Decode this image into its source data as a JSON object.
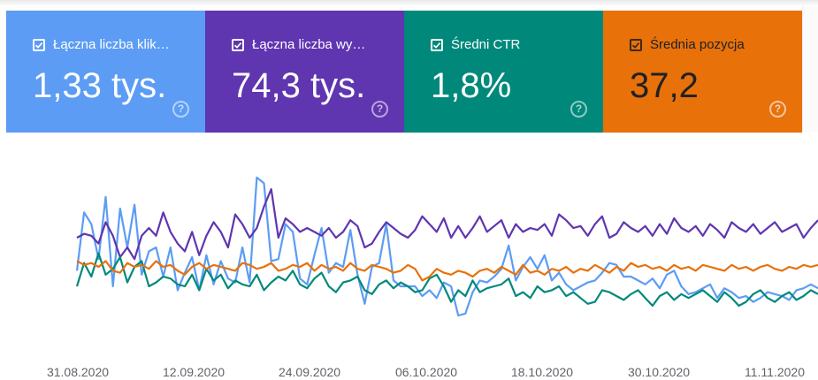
{
  "metric_cards": [
    {
      "label": "Łączna liczba klik…",
      "value": "1,33 tys.",
      "color": "#5c9cf4",
      "checked": true,
      "help_icon": "help-circle-icon"
    },
    {
      "label": "Łączna liczba wy…",
      "value": "74,3 tys.",
      "color": "#5f35b0",
      "checked": true,
      "help_icon": "help-circle-icon"
    },
    {
      "label": "Średni CTR",
      "value": "1,8%",
      "color": "#00897b",
      "checked": true,
      "help_icon": "help-circle-icon"
    },
    {
      "label": "Średnia pozycja",
      "value": "37,2",
      "color": "#e8710a",
      "checked": true,
      "help_icon": "help-circle-icon"
    }
  ],
  "chart_data": {
    "type": "line",
    "x_tick_labels": [
      "31.08.2020",
      "12.09.2020",
      "24.09.2020",
      "06.10.2020",
      "18.10.2020",
      "30.10.2020",
      "11.11.2020"
    ],
    "grid": false,
    "legend": "none",
    "axis_values_shown": false,
    "series": [
      {
        "name": "Łączna liczba klik…",
        "color": "#5c9cf4",
        "values": [
          0.38,
          0.68,
          0.62,
          0.44,
          0.76,
          0.3,
          0.7,
          0.5,
          0.72,
          0.36,
          0.48,
          0.5,
          0.35,
          0.5,
          0.28,
          0.37,
          0.45,
          0.28,
          0.46,
          0.31,
          0.43,
          0.34,
          0.32,
          0.5,
          0.32,
          0.86,
          0.83,
          0.43,
          0.44,
          0.62,
          0.58,
          0.34,
          0.31,
          0.46,
          0.6,
          0.37,
          0.42,
          0.4,
          0.59,
          0.36,
          0.21,
          0.4,
          0.42,
          0.62,
          0.33,
          0.3,
          0.3,
          0.3,
          0.25,
          0.28,
          0.24,
          0.32,
          0.3,
          0.15,
          0.16,
          0.27,
          0.33,
          0.32,
          0.35,
          0.39,
          0.51,
          0.33,
          0.4,
          0.45,
          0.39,
          0.46,
          0.33,
          0.37,
          0.31,
          0.28,
          0.3,
          0.32,
          0.33,
          0.37,
          0.42,
          0.41,
          0.35,
          0.35,
          0.33,
          0.31,
          0.34,
          0.29,
          0.36,
          0.38,
          0.3,
          0.26,
          0.27,
          0.29,
          0.31,
          0.24,
          0.29,
          0.27,
          0.24,
          0.25,
          0.22,
          0.24,
          0.27,
          0.26,
          0.25,
          0.23,
          0.28,
          0.29,
          0.31,
          0.29
        ]
      },
      {
        "name": "Łączna liczba wy…",
        "color": "#5f35b0",
        "values": [
          0.55,
          0.57,
          0.56,
          0.52,
          0.63,
          0.56,
          0.45,
          0.5,
          0.44,
          0.56,
          0.6,
          0.56,
          0.68,
          0.58,
          0.52,
          0.48,
          0.58,
          0.46,
          0.56,
          0.63,
          0.58,
          0.5,
          0.67,
          0.62,
          0.55,
          0.6,
          0.71,
          0.8,
          0.55,
          0.65,
          0.62,
          0.58,
          0.6,
          0.58,
          0.56,
          0.6,
          0.55,
          0.58,
          0.64,
          0.61,
          0.5,
          0.52,
          0.58,
          0.63,
          0.6,
          0.57,
          0.55,
          0.59,
          0.66,
          0.62,
          0.58,
          0.65,
          0.55,
          0.61,
          0.55,
          0.6,
          0.66,
          0.58,
          0.61,
          0.64,
          0.55,
          0.62,
          0.58,
          0.6,
          0.59,
          0.62,
          0.56,
          0.67,
          0.64,
          0.6,
          0.61,
          0.56,
          0.62,
          0.66,
          0.55,
          0.57,
          0.63,
          0.6,
          0.58,
          0.61,
          0.56,
          0.62,
          0.57,
          0.65,
          0.6,
          0.58,
          0.61,
          0.56,
          0.62,
          0.59,
          0.55,
          0.63,
          0.6,
          0.58,
          0.62,
          0.57,
          0.6,
          0.63,
          0.58,
          0.6,
          0.62,
          0.55,
          0.6,
          0.64
        ]
      },
      {
        "name": "Średni CTR",
        "color": "#00897b",
        "values": [
          0.3,
          0.42,
          0.35,
          0.47,
          0.36,
          0.39,
          0.45,
          0.32,
          0.4,
          0.43,
          0.3,
          0.32,
          0.35,
          0.34,
          0.31,
          0.3,
          0.36,
          0.28,
          0.39,
          0.33,
          0.36,
          0.29,
          0.33,
          0.31,
          0.3,
          0.36,
          0.28,
          0.32,
          0.35,
          0.33,
          0.38,
          0.31,
          0.29,
          0.34,
          0.37,
          0.3,
          0.27,
          0.32,
          0.33,
          0.35,
          0.28,
          0.26,
          0.31,
          0.33,
          0.29,
          0.32,
          0.3,
          0.27,
          0.28,
          0.34,
          0.36,
          0.3,
          0.22,
          0.28,
          0.25,
          0.33,
          0.27,
          0.29,
          0.3,
          0.31,
          0.34,
          0.25,
          0.27,
          0.24,
          0.3,
          0.27,
          0.28,
          0.3,
          0.25,
          0.27,
          0.24,
          0.21,
          0.22,
          0.28,
          0.27,
          0.25,
          0.23,
          0.26,
          0.28,
          0.24,
          0.2,
          0.25,
          0.27,
          0.23,
          0.26,
          0.24,
          0.26,
          0.28,
          0.25,
          0.22,
          0.27,
          0.24,
          0.2,
          0.22,
          0.26,
          0.28,
          0.24,
          0.22,
          0.25,
          0.27,
          0.23,
          0.25,
          0.28,
          0.26
        ]
      },
      {
        "name": "Średnia pozycja",
        "color": "#e8710a",
        "values": [
          0.43,
          0.41,
          0.42,
          0.4,
          0.43,
          0.38,
          0.37,
          0.42,
          0.4,
          0.41,
          0.39,
          0.43,
          0.4,
          0.41,
          0.38,
          0.36,
          0.4,
          0.42,
          0.39,
          0.41,
          0.4,
          0.39,
          0.38,
          0.42,
          0.41,
          0.39,
          0.4,
          0.42,
          0.38,
          0.39,
          0.41,
          0.4,
          0.42,
          0.38,
          0.41,
          0.39,
          0.4,
          0.38,
          0.42,
          0.39,
          0.38,
          0.41,
          0.4,
          0.39,
          0.37,
          0.38,
          0.41,
          0.39,
          0.33,
          0.35,
          0.39,
          0.37,
          0.36,
          0.38,
          0.37,
          0.35,
          0.38,
          0.39,
          0.37,
          0.4,
          0.38,
          0.36,
          0.41,
          0.37,
          0.38,
          0.36,
          0.39,
          0.38,
          0.4,
          0.37,
          0.39,
          0.38,
          0.41,
          0.39,
          0.37,
          0.4,
          0.38,
          0.42,
          0.4,
          0.41,
          0.39,
          0.4,
          0.38,
          0.41,
          0.39,
          0.4,
          0.38,
          0.41,
          0.4,
          0.39,
          0.38,
          0.41,
          0.39,
          0.4,
          0.38,
          0.4,
          0.41,
          0.39,
          0.38,
          0.4,
          0.39,
          0.41,
          0.4,
          0.41
        ]
      }
    ]
  }
}
